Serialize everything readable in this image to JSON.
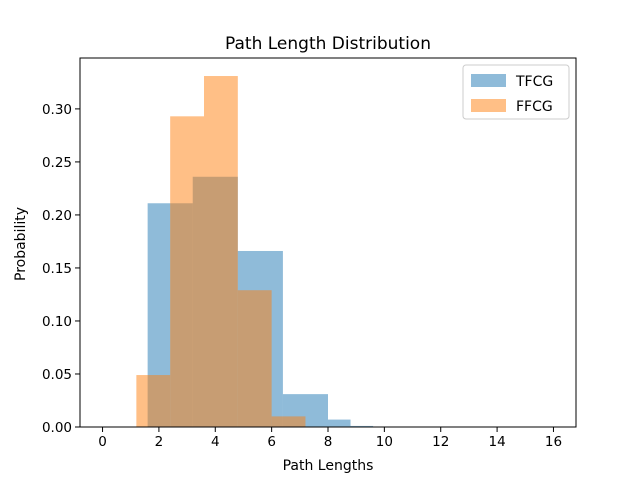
{
  "chart_data": {
    "type": "histogram",
    "title": "Path Length Distribution",
    "xlabel": "Path Lengths",
    "ylabel": "Probability",
    "xlim": [
      -0.8,
      16.8
    ],
    "ylim": [
      0,
      0.348
    ],
    "x_ticks": [
      0,
      2,
      4,
      6,
      8,
      10,
      12,
      14,
      16
    ],
    "y_ticks": [
      0.0,
      0.05,
      0.1,
      0.15,
      0.2,
      0.25,
      0.3
    ],
    "grid": false,
    "legend_position": "top-right",
    "series": [
      {
        "name": "TFCG",
        "color": "#1f77b4",
        "opacity": 0.5,
        "bins": [
          {
            "x0": 1.6,
            "x1": 2.4,
            "y": 0.211
          },
          {
            "x0": 2.4,
            "x1": 3.2,
            "y": 0.211
          },
          {
            "x0": 3.2,
            "x1": 4.8,
            "y": 0.236
          },
          {
            "x0": 4.8,
            "x1": 6.4,
            "y": 0.166
          },
          {
            "x0": 6.4,
            "x1": 8.0,
            "y": 0.031
          },
          {
            "x0": 8.0,
            "x1": 8.8,
            "y": 0.007
          },
          {
            "x0": 8.8,
            "x1": 9.6,
            "y": 0.001
          },
          {
            "x0": 9.6,
            "x1": 16.0,
            "y": 0.0003
          }
        ]
      },
      {
        "name": "FFCG",
        "color": "#ff7f0e",
        "opacity": 0.5,
        "bins": [
          {
            "x0": 1.2,
            "x1": 2.4,
            "y": 0.049
          },
          {
            "x0": 2.4,
            "x1": 3.6,
            "y": 0.293
          },
          {
            "x0": 3.6,
            "x1": 4.8,
            "y": 0.331
          },
          {
            "x0": 4.8,
            "x1": 6.0,
            "y": 0.129
          },
          {
            "x0": 6.0,
            "x1": 7.2,
            "y": 0.01
          }
        ]
      }
    ]
  }
}
